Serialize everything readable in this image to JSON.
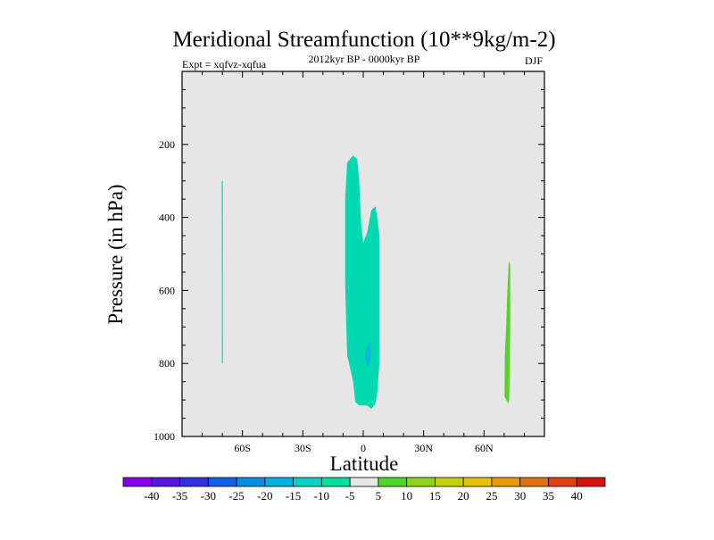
{
  "chart_data": {
    "type": "filled-contour",
    "title": "Meridional Streamfunction (10**9kg/m-2)",
    "subtitle_left": "Expt = xqfvz-xqfua",
    "subtitle_center": "2012kyr BP - 0000kyr BP",
    "subtitle_right": "DJF",
    "xlabel": "Latitude",
    "ylabel": "Pressure (in hPa)",
    "xlim": [
      -90,
      90
    ],
    "ylim": [
      1000,
      0
    ],
    "x_ticks": [
      {
        "value": -60,
        "label": "60S"
      },
      {
        "value": -30,
        "label": "30S"
      },
      {
        "value": 0,
        "label": "0"
      },
      {
        "value": 30,
        "label": "30N"
      },
      {
        "value": 60,
        "label": "60N"
      }
    ],
    "y_ticks": [
      {
        "value": 200,
        "label": "200"
      },
      {
        "value": 400,
        "label": "400"
      },
      {
        "value": 600,
        "label": "600"
      },
      {
        "value": 800,
        "label": "800"
      },
      {
        "value": 1000,
        "label": "1000"
      }
    ],
    "background_color": "#e6e6e6",
    "regions": [
      {
        "name": "tropical-negative-cell",
        "level": -10,
        "color": "#00d8b0",
        "points": [
          [
            -8,
            780
          ],
          [
            -9,
            580
          ],
          [
            -9,
            350
          ],
          [
            -8,
            250
          ],
          [
            -5,
            230
          ],
          [
            -3,
            240
          ],
          [
            -2,
            300
          ],
          [
            -1,
            420
          ],
          [
            0,
            470
          ],
          [
            2,
            440
          ],
          [
            4,
            380
          ],
          [
            6,
            370
          ],
          [
            7,
            400
          ],
          [
            8,
            450
          ],
          [
            8,
            620
          ],
          [
            8,
            800
          ],
          [
            7,
            880
          ],
          [
            6,
            910
          ],
          [
            4,
            925
          ],
          [
            2,
            915
          ],
          [
            -2,
            915
          ],
          [
            -4,
            905
          ],
          [
            -5,
            850
          ],
          [
            -7,
            800
          ]
        ]
      },
      {
        "name": "tropical-inner-core",
        "level": -15,
        "color": "#0ab8dc",
        "points": [
          [
            1,
            765
          ],
          [
            3,
            740
          ],
          [
            4,
            770
          ],
          [
            3,
            800
          ],
          [
            2,
            810
          ],
          [
            1,
            790
          ]
        ]
      },
      {
        "name": "southern-sliver",
        "level": -10,
        "color": "#00d8b0",
        "points": [
          [
            -70.3,
            300
          ],
          [
            -69.8,
            300
          ],
          [
            -69.7,
            800
          ],
          [
            -70.2,
            800
          ]
        ]
      },
      {
        "name": "northern-positive-cell",
        "level": 10,
        "color": "#55d428",
        "points": [
          [
            72.3,
            520
          ],
          [
            73,
            530
          ],
          [
            73,
            700
          ],
          [
            72.8,
            800
          ],
          [
            72.5,
            900
          ],
          [
            72,
            910
          ],
          [
            70.2,
            890
          ],
          [
            70.3,
            780
          ],
          [
            71,
            700
          ],
          [
            71.6,
            600
          ]
        ]
      }
    ],
    "colorbar": {
      "levels": [
        -40,
        -35,
        -30,
        -25,
        -20,
        -15,
        -10,
        -5,
        5,
        10,
        15,
        20,
        25,
        30,
        35,
        40
      ],
      "colors": [
        "#8800e8",
        "#5a14e0",
        "#3030e0",
        "#1060e8",
        "#0090e0",
        "#00b4e0",
        "#00d4c4",
        "#00e0a0",
        "#e6e6e6",
        "#50d628",
        "#90d418",
        "#c4d00c",
        "#e8c008",
        "#e89a08",
        "#e07010",
        "#e04010",
        "#d81010"
      ]
    }
  }
}
